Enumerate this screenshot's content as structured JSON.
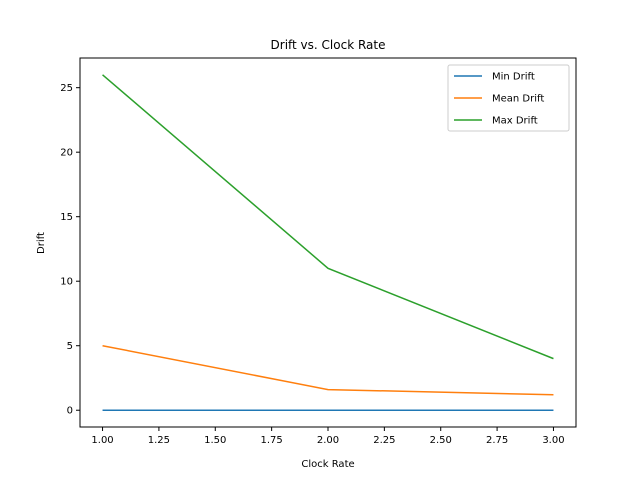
{
  "chart_data": {
    "type": "line",
    "title": "Drift vs. Clock Rate",
    "xlabel": "Clock Rate",
    "ylabel": "Drift",
    "x": [
      1.0,
      2.0,
      3.0
    ],
    "xlim": [
      0.9,
      3.1
    ],
    "ylim": [
      -1.3,
      27.3
    ],
    "xticks": [
      "1.00",
      "1.25",
      "1.50",
      "1.75",
      "2.00",
      "2.25",
      "2.50",
      "2.75",
      "3.00"
    ],
    "yticks": [
      "0",
      "5",
      "10",
      "15",
      "20",
      "25"
    ],
    "grid": false,
    "legend_position": "top-right",
    "series": [
      {
        "name": "Min Drift",
        "color": "#1f77b4",
        "values": [
          0,
          0,
          0
        ]
      },
      {
        "name": "Mean Drift",
        "color": "#ff7f0e",
        "values": [
          5.0,
          1.6,
          1.2
        ]
      },
      {
        "name": "Max Drift",
        "color": "#2ca02c",
        "values": [
          26.0,
          11.0,
          4.0
        ]
      }
    ]
  }
}
